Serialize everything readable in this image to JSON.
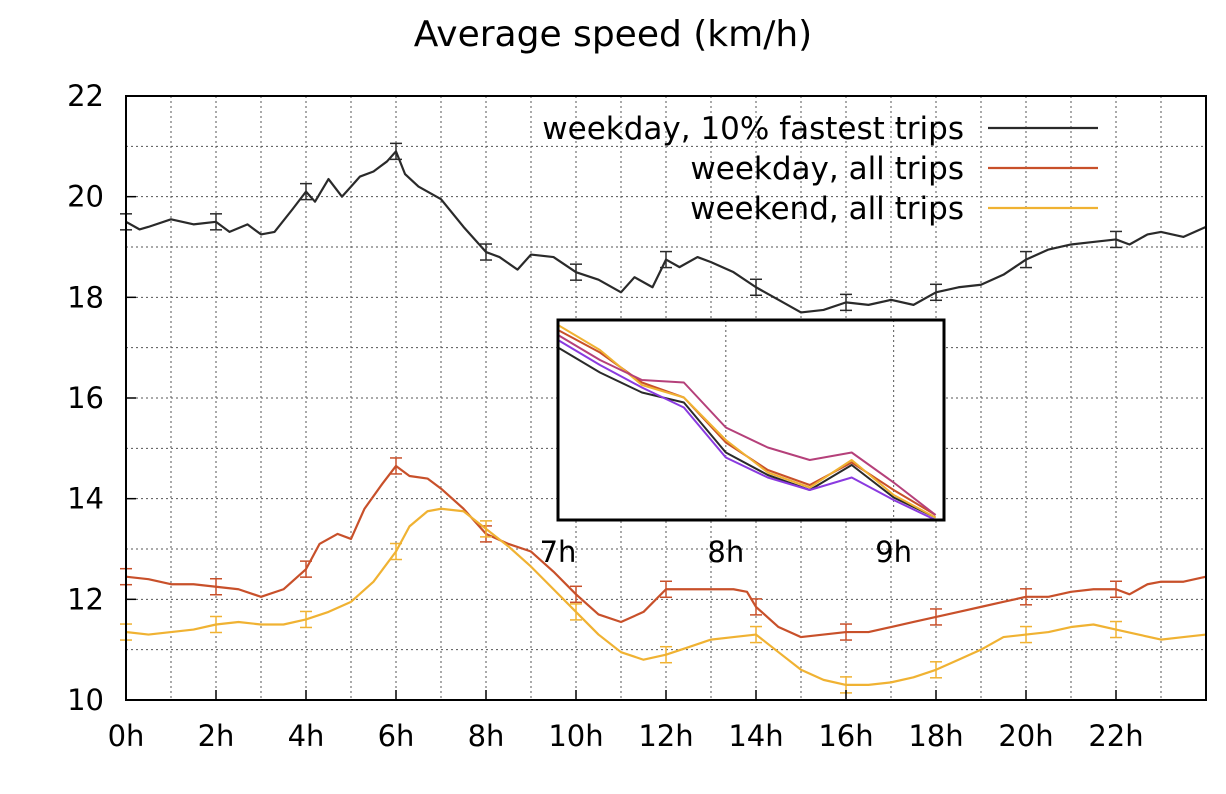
{
  "chart_data": {
    "type": "line",
    "title": "Average speed (km/h)",
    "xlabel": "",
    "ylabel": "",
    "xlim": [
      0,
      24
    ],
    "ylim": [
      10,
      22
    ],
    "xticks": [
      0,
      2,
      4,
      6,
      8,
      10,
      12,
      14,
      16,
      18,
      20,
      22
    ],
    "xtick_labels": [
      "0h",
      "2h",
      "4h",
      "6h",
      "8h",
      "10h",
      "12h",
      "14h",
      "16h",
      "18h",
      "20h",
      "22h"
    ],
    "yticks": [
      10,
      12,
      14,
      16,
      18,
      20,
      22
    ],
    "ytick_labels": [
      "10",
      "12",
      "14",
      "16",
      "18",
      "20",
      "22"
    ],
    "grid": true,
    "legend_position": "top-right",
    "series": [
      {
        "name": "weekday, 10% fastest trips",
        "color": "#2a2a2a",
        "x": [
          0,
          0.3,
          0.5,
          1,
          1.5,
          2,
          2.3,
          2.7,
          3,
          3.3,
          3.7,
          4,
          4.2,
          4.5,
          4.8,
          5,
          5.2,
          5.5,
          5.8,
          6,
          6.2,
          6.5,
          7,
          7.5,
          8,
          8.3,
          8.7,
          9,
          9.5,
          10,
          10.5,
          11,
          11.3,
          11.7,
          12,
          12.3,
          12.7,
          13,
          13.5,
          14,
          14.5,
          15,
          15.5,
          16,
          16.5,
          17,
          17.5,
          18,
          18.5,
          19,
          19.5,
          20,
          20.5,
          21,
          21.5,
          22,
          22.3,
          22.7,
          23,
          23.5,
          24
        ],
        "y": [
          19.5,
          19.35,
          19.4,
          19.55,
          19.45,
          19.5,
          19.3,
          19.45,
          19.25,
          19.3,
          19.75,
          20.1,
          19.9,
          20.35,
          20.0,
          20.2,
          20.4,
          20.5,
          20.7,
          20.9,
          20.45,
          20.2,
          19.95,
          19.4,
          18.9,
          18.8,
          18.55,
          18.85,
          18.8,
          18.5,
          18.35,
          18.1,
          18.4,
          18.2,
          18.75,
          18.6,
          18.8,
          18.7,
          18.5,
          18.2,
          17.95,
          17.7,
          17.75,
          17.9,
          17.85,
          17.95,
          17.85,
          18.1,
          18.2,
          18.25,
          18.45,
          18.75,
          18.95,
          19.05,
          19.1,
          19.15,
          19.05,
          19.25,
          19.3,
          19.2,
          19.4
        ]
      },
      {
        "name": "weekday, all trips",
        "color": "#c8502a",
        "x": [
          0,
          0.5,
          1,
          1.5,
          2,
          2.5,
          3,
          3.5,
          4,
          4.3,
          4.7,
          5,
          5.3,
          5.7,
          6,
          6.3,
          6.7,
          7,
          7.5,
          8,
          8.5,
          9,
          9.5,
          10,
          10.5,
          11,
          11.5,
          12,
          12.5,
          13,
          13.5,
          13.8,
          14,
          14.5,
          15,
          15.5,
          16,
          16.5,
          17,
          17.5,
          18,
          18.5,
          19,
          19.5,
          20,
          20.5,
          21,
          21.5,
          22,
          22.3,
          22.7,
          23,
          23.5,
          24
        ],
        "y": [
          12.45,
          12.4,
          12.3,
          12.3,
          12.25,
          12.2,
          12.05,
          12.2,
          12.6,
          13.1,
          13.3,
          13.2,
          13.8,
          14.3,
          14.65,
          14.45,
          14.4,
          14.2,
          13.8,
          13.3,
          13.1,
          12.95,
          12.55,
          12.1,
          11.7,
          11.55,
          11.75,
          12.2,
          12.2,
          12.2,
          12.2,
          12.15,
          11.85,
          11.45,
          11.25,
          11.3,
          11.35,
          11.35,
          11.45,
          11.55,
          11.65,
          11.75,
          11.85,
          11.95,
          12.05,
          12.05,
          12.15,
          12.2,
          12.2,
          12.1,
          12.3,
          12.35,
          12.35,
          12.45
        ]
      },
      {
        "name": "weekend, all trips",
        "color": "#f0b232",
        "x": [
          0,
          0.5,
          1,
          1.5,
          2,
          2.5,
          3,
          3.5,
          4,
          4.5,
          5,
          5.5,
          6,
          6.3,
          6.7,
          7,
          7.5,
          8,
          8.5,
          9,
          9.5,
          10,
          10.5,
          11,
          11.5,
          12,
          12.5,
          13,
          13.5,
          14,
          14.5,
          15,
          15.5,
          16,
          16.5,
          17,
          17.5,
          18,
          18.5,
          19,
          19.5,
          20,
          20.5,
          21,
          21.5,
          22,
          22.5,
          23,
          23.5,
          24
        ],
        "y": [
          11.35,
          11.3,
          11.35,
          11.4,
          11.5,
          11.55,
          11.5,
          11.5,
          11.6,
          11.75,
          11.95,
          12.35,
          12.95,
          13.45,
          13.75,
          13.8,
          13.75,
          13.4,
          13.05,
          12.65,
          12.2,
          11.75,
          11.3,
          10.95,
          10.8,
          10.9,
          11.05,
          11.2,
          11.25,
          11.3,
          10.95,
          10.6,
          10.4,
          10.3,
          10.3,
          10.35,
          10.45,
          10.6,
          10.8,
          11.0,
          11.25,
          11.3,
          11.35,
          11.45,
          11.5,
          11.4,
          11.3,
          11.2,
          11.25,
          11.3
        ]
      }
    ],
    "inset": {
      "xlim": [
        7,
        9.3
      ],
      "ylim": [
        13.5,
        17.5
      ],
      "xticks": [
        7,
        8,
        9
      ],
      "xtick_labels": [
        "7h",
        "8h",
        "9h"
      ],
      "series": [
        {
          "color": "#2a2a2a",
          "x": [
            7,
            7.25,
            7.5,
            7.75,
            8,
            8.25,
            8.5,
            8.75,
            9,
            9.25
          ],
          "y": [
            16.95,
            16.45,
            16.05,
            15.85,
            14.85,
            14.4,
            14.1,
            14.6,
            13.95,
            13.55
          ]
        },
        {
          "color": "#c8502a",
          "x": [
            7,
            7.25,
            7.5,
            7.75,
            8,
            8.25,
            8.5,
            8.75,
            9,
            9.25
          ],
          "y": [
            17.3,
            16.85,
            16.25,
            15.95,
            15.05,
            14.5,
            14.2,
            14.65,
            14.1,
            13.6
          ]
        },
        {
          "color": "#f0b232",
          "x": [
            7,
            7.25,
            7.5,
            7.75,
            8,
            8.25,
            8.5,
            8.75,
            9,
            9.25
          ],
          "y": [
            17.4,
            16.9,
            16.2,
            15.95,
            15.1,
            14.45,
            14.15,
            14.7,
            14.0,
            13.55
          ]
        },
        {
          "color": "#b5407a",
          "x": [
            7,
            7.25,
            7.5,
            7.75,
            8,
            8.25,
            8.5,
            8.75,
            9,
            9.25
          ],
          "y": [
            17.2,
            16.7,
            16.3,
            16.25,
            15.35,
            14.95,
            14.7,
            14.85,
            14.25,
            13.6
          ]
        },
        {
          "color": "#8a3ae0",
          "x": [
            7,
            7.25,
            7.5,
            7.75,
            8,
            8.25,
            8.5,
            8.75,
            9,
            9.25
          ],
          "y": [
            17.1,
            16.6,
            16.15,
            15.75,
            14.75,
            14.35,
            14.1,
            14.35,
            13.9,
            13.5
          ]
        }
      ]
    }
  }
}
